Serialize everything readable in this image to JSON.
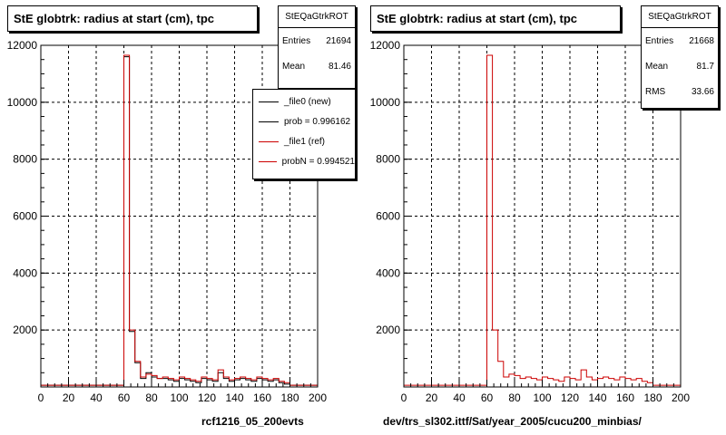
{
  "panels": [
    {
      "title": "StE globtrk: radius at start (cm), tpc",
      "stats": {
        "name": "StEQaGtrkROT",
        "entries_label": "Entries",
        "entries": "21694",
        "mean_label": "Mean",
        "mean": "81.46"
      },
      "legend": [
        {
          "label": "_file0 (new)",
          "color": "#000000"
        },
        {
          "label": "prob = 0.996162",
          "color": "#000000"
        },
        {
          "label": "_file1 (ref)",
          "color": "#cc0000"
        },
        {
          "label": "probN = 0.994521",
          "color": "#cc0000"
        }
      ],
      "footer": "rcf1216_05_200evts"
    },
    {
      "title": "StE globtrk: radius at start (cm), tpc",
      "stats": {
        "name": "StEQaGtrkROT",
        "entries_label": "Entries",
        "entries": "21668",
        "mean_label": "Mean",
        "mean": "81.7",
        "rms_label": "RMS",
        "rms": "33.66"
      },
      "footer": "dev/trs_sl302.ittf/Sat/year_2005/cucu200_minbias/"
    }
  ],
  "chart_data": [
    {
      "type": "line",
      "title": "StE globtrk: radius at start (cm), tpc",
      "xlim": [
        0,
        200
      ],
      "ylim": [
        0,
        12000
      ],
      "xticks": [
        0,
        20,
        40,
        60,
        80,
        100,
        120,
        140,
        160,
        180,
        200
      ],
      "yticks": [
        2000,
        4000,
        6000,
        8000,
        10000,
        12000
      ],
      "grid": true,
      "bin_width": 4,
      "series": [
        {
          "name": "_file0 (new)",
          "color": "#000000",
          "values": [
            60,
            60,
            60,
            60,
            60,
            60,
            60,
            60,
            60,
            60,
            60,
            60,
            60,
            60,
            60,
            11600,
            1950,
            850,
            300,
            500,
            350,
            300,
            300,
            250,
            200,
            300,
            250,
            200,
            150,
            300,
            250,
            200,
            500,
            300,
            200,
            250,
            300,
            250,
            200,
            300,
            250,
            200,
            250,
            150,
            100,
            60,
            60,
            60,
            60,
            60
          ]
        },
        {
          "name": "_file1 (ref)",
          "color": "#cc0000",
          "values": [
            60,
            60,
            60,
            60,
            60,
            60,
            60,
            60,
            60,
            60,
            60,
            60,
            60,
            60,
            60,
            11650,
            2000,
            900,
            350,
            450,
            400,
            300,
            350,
            300,
            250,
            350,
            300,
            250,
            200,
            350,
            300,
            250,
            600,
            350,
            250,
            300,
            350,
            300,
            250,
            350,
            300,
            250,
            300,
            200,
            150,
            60,
            60,
            60,
            60,
            60
          ]
        }
      ]
    },
    {
      "type": "line",
      "title": "StE globtrk: radius at start (cm), tpc",
      "xlim": [
        0,
        200
      ],
      "ylim": [
        0,
        12000
      ],
      "xticks": [
        0,
        20,
        40,
        60,
        80,
        100,
        120,
        140,
        160,
        180,
        200
      ],
      "yticks": [
        2000,
        4000,
        6000,
        8000,
        10000,
        12000
      ],
      "grid": true,
      "bin_width": 4,
      "series": [
        {
          "name": "_file1 (ref)",
          "color": "#cc0000",
          "values": [
            60,
            60,
            60,
            60,
            60,
            60,
            60,
            60,
            60,
            60,
            60,
            60,
            60,
            60,
            60,
            11650,
            2000,
            900,
            350,
            450,
            400,
            300,
            350,
            300,
            250,
            350,
            300,
            250,
            200,
            350,
            300,
            250,
            600,
            350,
            250,
            300,
            350,
            300,
            250,
            350,
            300,
            250,
            300,
            200,
            150,
            60,
            60,
            60,
            60,
            60
          ]
        }
      ]
    }
  ]
}
